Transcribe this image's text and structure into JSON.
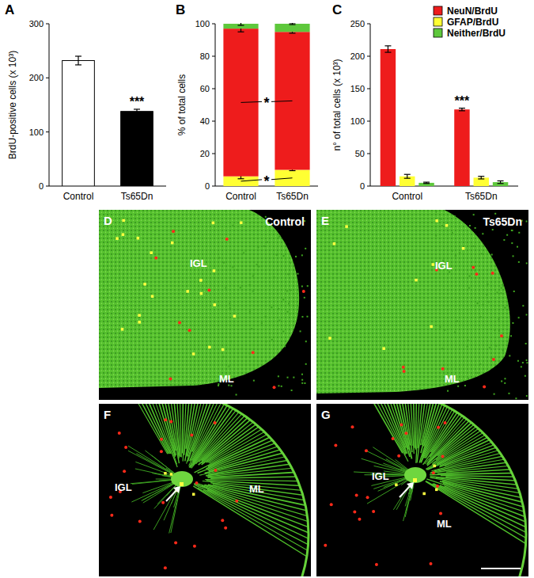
{
  "chart_data": [
    {
      "type": "bar",
      "title": "A",
      "y_label": "BrdU-positive cells (x 10³)",
      "categories": [
        "Control",
        "Ts65Dn"
      ],
      "values": [
        232,
        138
      ],
      "errors": [
        8,
        4
      ],
      "colors": [
        "#ffffff",
        "#000000"
      ],
      "ylim": [
        0,
        300
      ],
      "yticks": [
        0,
        100,
        200,
        300
      ],
      "annotations": [
        {
          "text": "***",
          "category": "Ts65Dn"
        }
      ]
    },
    {
      "type": "bar",
      "title": "B",
      "y_label": "% of total cells",
      "stacked": true,
      "categories": [
        "Control",
        "Ts65Dn"
      ],
      "series": [
        {
          "name": "GFAP/BrdU",
          "color": "#ffff33",
          "values": [
            6,
            10
          ],
          "errors": [
            1.5,
            0.5
          ]
        },
        {
          "name": "NeuN/BrdU",
          "color": "#ee1c1c",
          "values": [
            91,
            85
          ],
          "errors": [
            2,
            0.8
          ]
        },
        {
          "name": "Neither/BrdU",
          "color": "#5ec83c",
          "values": [
            3,
            5
          ],
          "errors": [
            1,
            0.5
          ]
        }
      ],
      "ylim": [
        0,
        100
      ],
      "yticks": [
        0,
        20,
        40,
        60,
        80,
        100
      ],
      "annotations": [
        {
          "text": "*",
          "series": "NeuN/BrdU"
        },
        {
          "text": "*",
          "series": "GFAP/BrdU"
        }
      ]
    },
    {
      "type": "bar",
      "title": "C",
      "y_label": "n° of total cells (x 10³)",
      "categories": [
        "Control",
        "Ts65Dn"
      ],
      "series": [
        {
          "name": "NeuN/BrdU",
          "color": "#ee1c1c",
          "values": [
            211,
            118
          ],
          "errors": [
            5,
            2
          ]
        },
        {
          "name": "GFAP/BrdU",
          "color": "#ffff33",
          "values": [
            15,
            13
          ],
          "errors": [
            3,
            2
          ]
        },
        {
          "name": "Neither/BrdU",
          "color": "#5ec83c",
          "values": [
            5,
            6
          ],
          "errors": [
            1,
            2
          ]
        }
      ],
      "ylim": [
        0,
        250
      ],
      "yticks": [
        0,
        50,
        100,
        150,
        200,
        250
      ],
      "legend": "upper right",
      "annotations": [
        {
          "text": "***",
          "category": "Ts65Dn",
          "series": "NeuN/BrdU"
        }
      ]
    }
  ],
  "micrographs": [
    {
      "panel": "D",
      "label": "Control",
      "regions": [
        "IGL",
        "ML"
      ]
    },
    {
      "panel": "E",
      "label": "Ts65Dn",
      "regions": [
        "IGL",
        "ML"
      ]
    },
    {
      "panel": "F",
      "regions": [
        "IGL",
        "ML"
      ]
    },
    {
      "panel": "G",
      "regions": [
        "IGL",
        "ML"
      ]
    }
  ]
}
